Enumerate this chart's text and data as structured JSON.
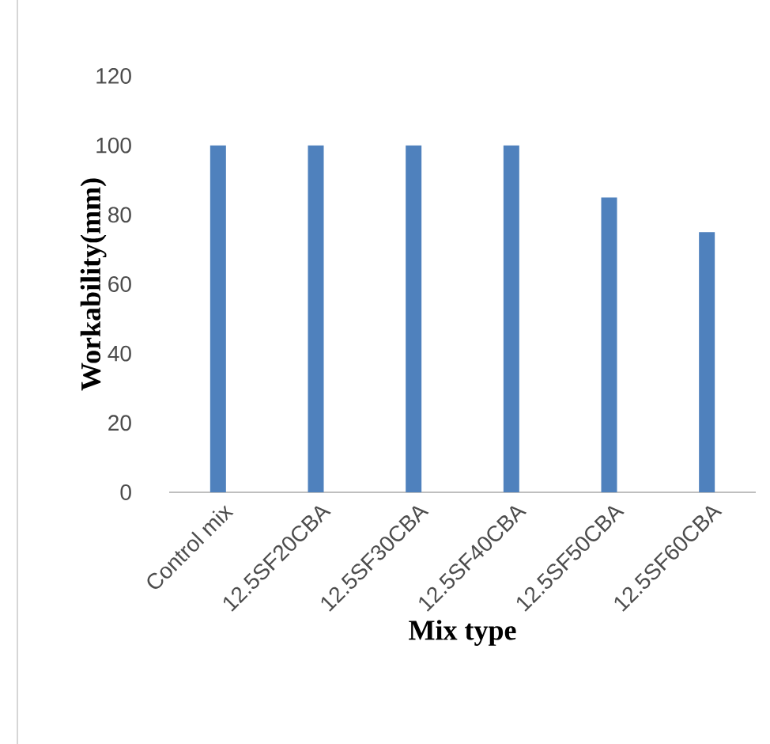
{
  "chart_data": {
    "type": "bar",
    "xlabel": "Mix type",
    "ylabel": "Workability(mm)",
    "categories": [
      "Control mix",
      "12.5SF20CBA",
      "12.5SF30CBA",
      "12.5SF40CBA",
      "12.5SF50CBA",
      "12.5SF60CBA"
    ],
    "values": [
      100,
      100,
      100,
      100,
      85,
      75
    ],
    "color": "#4f81bd",
    "ylim": [
      0,
      120
    ],
    "yticks": [
      0,
      20,
      40,
      60,
      80,
      100,
      120
    ]
  }
}
